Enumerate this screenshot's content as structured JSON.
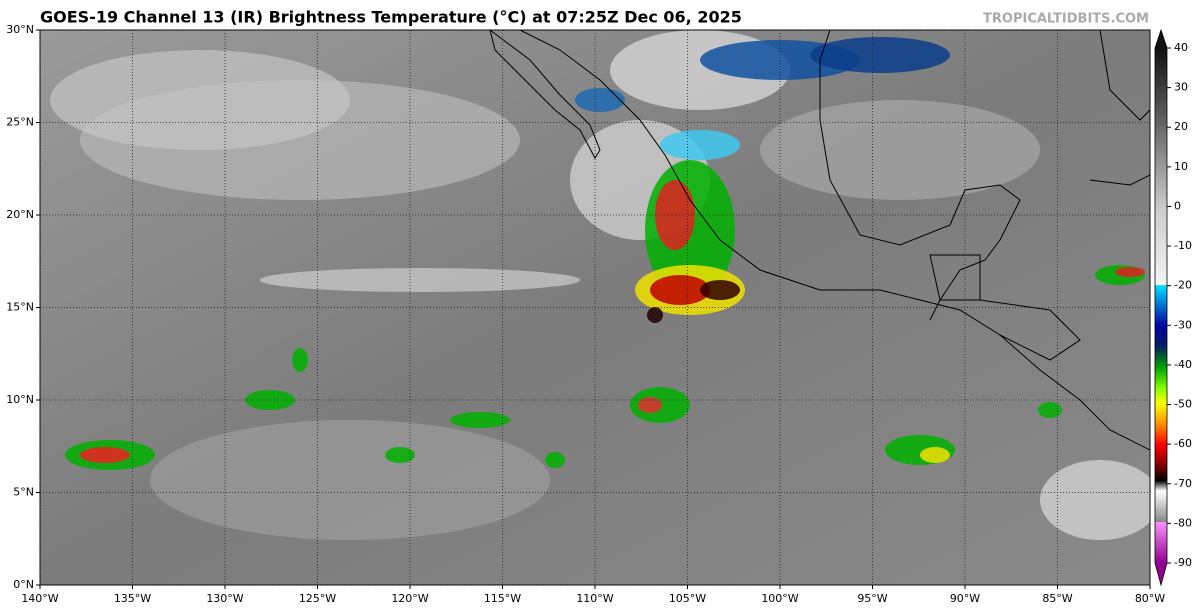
{
  "map": {
    "title": "GOES-19 Channel 13 (IR) Brightness Temperature (°C) at 07:25Z Dec 06, 2025",
    "credit": "TROPICALTIDBITS.COM",
    "xlim": [
      -140,
      -80
    ],
    "ylim": [
      0,
      30
    ],
    "xticks": [
      {
        "value": -140,
        "label": "140°W"
      },
      {
        "value": -135,
        "label": "135°W"
      },
      {
        "value": -130,
        "label": "130°W"
      },
      {
        "value": -125,
        "label": "125°W"
      },
      {
        "value": -120,
        "label": "120°W"
      },
      {
        "value": -115,
        "label": "115°W"
      },
      {
        "value": -110,
        "label": "110°W"
      },
      {
        "value": -105,
        "label": "105°W"
      },
      {
        "value": -100,
        "label": "100°W"
      },
      {
        "value": -95,
        "label": "95°W"
      },
      {
        "value": -90,
        "label": "90°W"
      },
      {
        "value": -85,
        "label": "85°W"
      },
      {
        "value": -80,
        "label": "80°W"
      }
    ],
    "yticks": [
      {
        "value": 0,
        "label": "0°N"
      },
      {
        "value": 5,
        "label": "5°N"
      },
      {
        "value": 10,
        "label": "10°N"
      },
      {
        "value": 15,
        "label": "15°N"
      },
      {
        "value": 20,
        "label": "20°N"
      },
      {
        "value": 25,
        "label": "25°N"
      },
      {
        "value": 30,
        "label": "30°N"
      }
    ],
    "grid": true,
    "colorbar": {
      "lim": [
        -90,
        40
      ],
      "ticks": [
        40,
        30,
        20,
        10,
        0,
        -10,
        -20,
        -30,
        -40,
        -50,
        -60,
        -70,
        -80,
        -90
      ]
    }
  }
}
